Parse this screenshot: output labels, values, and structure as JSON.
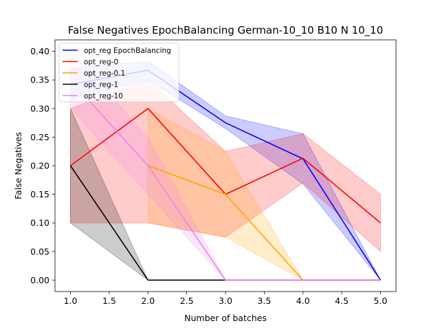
{
  "chart_data": {
    "type": "line",
    "title": "False Negatives EpochBalancing German-10_10 B10 N 10_10",
    "xlabel": "Number of batches",
    "ylabel": "False Negatives",
    "xlim": [
      0.8,
      5.2
    ],
    "ylim": [
      -0.02,
      0.42
    ],
    "xticks": [
      1.0,
      1.5,
      2.0,
      2.5,
      3.0,
      3.5,
      4.0,
      4.5,
      5.0
    ],
    "xtick_labels": [
      "1.0",
      "1.5",
      "2.0",
      "2.5",
      "3.0",
      "3.5",
      "4.0",
      "4.5",
      "5.0"
    ],
    "yticks": [
      0.0,
      0.05,
      0.1,
      0.15,
      0.2,
      0.25,
      0.3,
      0.35,
      0.4
    ],
    "ytick_labels": [
      "0.00",
      "0.05",
      "0.10",
      "0.15",
      "0.20",
      "0.25",
      "0.30",
      "0.35",
      "0.40"
    ],
    "grid": false,
    "legend_position": "top-left",
    "x": [
      1,
      2,
      3,
      4,
      5
    ],
    "series": [
      {
        "name": "opt_reg EpochBalancing",
        "color": "#0000ff",
        "values": [
          0.342,
          0.367,
          0.275,
          0.212,
          0.0
        ],
        "lower": [
          0.315,
          0.35,
          0.265,
          0.168,
          0.0
        ],
        "upper": [
          0.37,
          0.383,
          0.287,
          0.256,
          0.0
        ]
      },
      {
        "name": "opt_reg-0",
        "color": "#ff0000",
        "values": [
          0.2,
          0.3,
          0.15,
          0.213,
          0.1
        ],
        "lower": [
          0.1,
          0.1,
          0.075,
          0.17,
          0.05
        ],
        "upper": [
          0.3,
          0.35,
          0.225,
          0.256,
          0.15
        ]
      },
      {
        "name": "opt_reg-0.1",
        "color": "#ffa500",
        "values": [
          null,
          0.2,
          0.15,
          0.0,
          0.0
        ],
        "lower": [
          null,
          0.1,
          0.075,
          0.0,
          0.0
        ],
        "upper": [
          null,
          0.3,
          0.225,
          0.0,
          0.0
        ]
      },
      {
        "name": "opt_reg-1",
        "color": "#000000",
        "values": [
          0.2,
          0.0,
          0.0,
          0.0,
          0.0
        ],
        "lower": [
          0.1,
          0.0,
          0.0,
          0.0,
          0.0
        ],
        "upper": [
          0.3,
          0.0,
          0.0,
          0.0,
          0.0
        ]
      },
      {
        "name": "opt_reg-10",
        "color": "#ee82ee",
        "values": [
          0.35,
          0.2,
          0.0,
          0.0,
          0.0
        ],
        "lower": [
          0.3,
          0.15,
          0.0,
          0.0,
          0.0
        ],
        "upper": [
          0.4,
          0.25,
          0.0,
          0.0,
          0.0
        ]
      }
    ]
  }
}
